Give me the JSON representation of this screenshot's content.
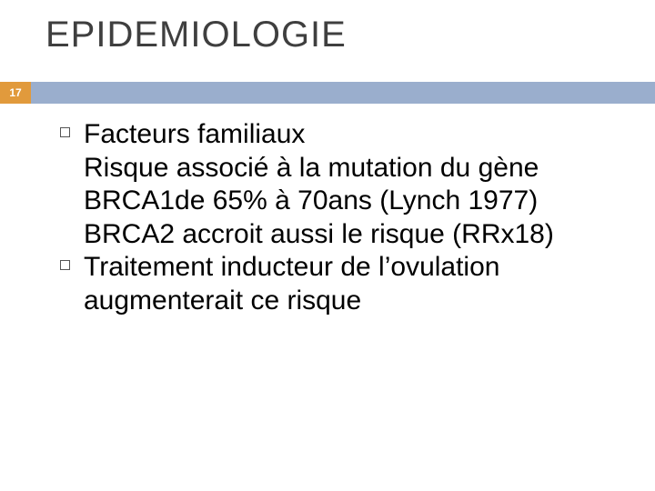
{
  "slide": {
    "title": "EPIDEMIOLOGIE",
    "page_number": "17",
    "title_color": "#3f3f3f",
    "title_fontsize": 40,
    "badge_bg": "#e19a3c",
    "badge_fg": "#ffffff",
    "bar_color": "#9aaecd",
    "body_fontsize": 30,
    "body_color": "#000000",
    "bullets": [
      {
        "lines": [
          "Facteurs familiaux",
          "Risque associé à la mutation du gène BRCA1de 65% à 70ans (Lynch 1977)",
          "BRCA2 accroit aussi le risque (RRx18)"
        ]
      },
      {
        "lines": [
          "Traitement inducteur de l’ovulation augmenterait ce risque"
        ]
      }
    ]
  }
}
